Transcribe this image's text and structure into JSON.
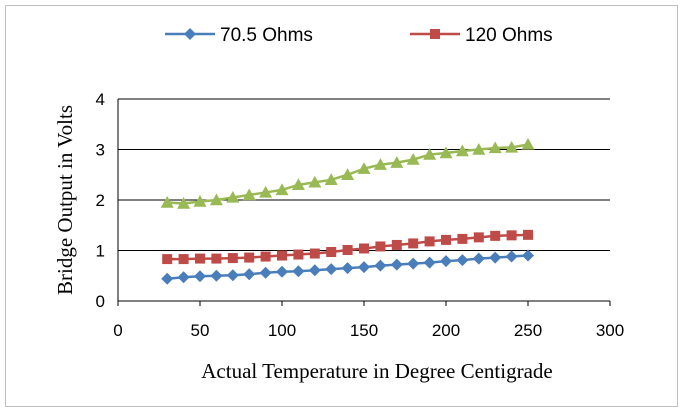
{
  "chart_data": {
    "type": "line",
    "title": "",
    "xlabel": "Actual Temperature in Degree Centigrade",
    "ylabel": "Bridge Output in Volts",
    "xlim": [
      0,
      300
    ],
    "ylim": [
      0,
      4
    ],
    "xticks": [
      0,
      50,
      100,
      150,
      200,
      250,
      300
    ],
    "yticks": [
      0,
      1,
      2,
      3,
      4
    ],
    "grid": "horizontal",
    "legend_position": "top",
    "x": [
      30,
      40,
      50,
      60,
      70,
      80,
      90,
      100,
      110,
      120,
      130,
      140,
      150,
      160,
      170,
      180,
      190,
      200,
      210,
      220,
      230,
      240,
      250
    ],
    "series": [
      {
        "name": "70.5 Ohms",
        "color": "#4a7ebb",
        "marker": "diamond",
        "values": [
          0.44,
          0.47,
          0.49,
          0.5,
          0.51,
          0.53,
          0.56,
          0.58,
          0.59,
          0.61,
          0.63,
          0.65,
          0.67,
          0.7,
          0.72,
          0.74,
          0.76,
          0.79,
          0.81,
          0.84,
          0.86,
          0.88,
          0.9
        ]
      },
      {
        "name": "120 Ohms",
        "color": "#be4b48",
        "marker": "square",
        "values": [
          0.83,
          0.83,
          0.84,
          0.84,
          0.85,
          0.86,
          0.88,
          0.9,
          0.92,
          0.94,
          0.97,
          1.01,
          1.04,
          1.08,
          1.11,
          1.14,
          1.18,
          1.21,
          1.23,
          1.26,
          1.29,
          1.3,
          1.31
        ]
      },
      {
        "color": "#98b954",
        "marker": "triangle",
        "values": [
          1.95,
          1.93,
          1.97,
          2.0,
          2.05,
          2.1,
          2.15,
          2.2,
          2.3,
          2.35,
          2.4,
          2.5,
          2.62,
          2.7,
          2.74,
          2.8,
          2.9,
          2.93,
          2.97,
          3.0,
          3.03,
          3.04,
          3.1
        ]
      }
    ]
  }
}
